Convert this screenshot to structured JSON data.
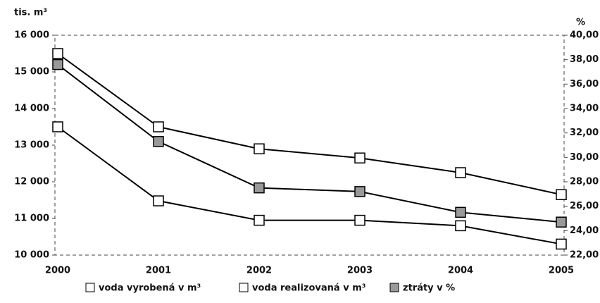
{
  "chart_data": {
    "type": "line",
    "y_label": "tis. m³",
    "y2_label": "%",
    "categories": [
      "2000",
      "2001",
      "2002",
      "2003",
      "2004",
      "2005"
    ],
    "series": [
      {
        "name": "voda vyrobená v m³",
        "color": "#000000",
        "marker_fill": "#ffffff",
        "values": [
          15500,
          13500,
          12900,
          12650,
          12250,
          11650
        ]
      },
      {
        "name": "voda realizovaná v m³",
        "color": "#000000",
        "marker_fill": "#ffffff",
        "values": [
          13500,
          11480,
          10950,
          10950,
          10800,
          10300
        ]
      },
      {
        "name": "ztráty v %",
        "color": "#000000",
        "marker_fill": "#999999",
        "axis": "y2",
        "values": [
          37.6,
          31.3,
          27.5,
          27.2,
          25.5,
          24.7
        ]
      }
    ],
    "ylim": [
      10000,
      16000
    ],
    "yticks": [
      {
        "value": 10000,
        "label": "10 000"
      },
      {
        "value": 11000,
        "label": "11 000"
      },
      {
        "value": 12000,
        "label": "12 000"
      },
      {
        "value": 13000,
        "label": "13 000"
      },
      {
        "value": 14000,
        "label": "14 000"
      },
      {
        "value": 15000,
        "label": "15 000"
      },
      {
        "value": 16000,
        "label": "16 000"
      }
    ],
    "y2lim": [
      22,
      40
    ],
    "y2ticks": [
      {
        "value": 22,
        "label": "22,00"
      },
      {
        "value": 24,
        "label": "24,00"
      },
      {
        "value": 26,
        "label": "26,00"
      },
      {
        "value": 28,
        "label": "28,00"
      },
      {
        "value": 30,
        "label": "30,00"
      },
      {
        "value": 32,
        "label": "32,00"
      },
      {
        "value": 34,
        "label": "34,00"
      },
      {
        "value": 36,
        "label": "36,00"
      },
      {
        "value": 38,
        "label": "38,00"
      },
      {
        "value": 40,
        "label": "40,00"
      }
    ],
    "legend": "bottom"
  }
}
